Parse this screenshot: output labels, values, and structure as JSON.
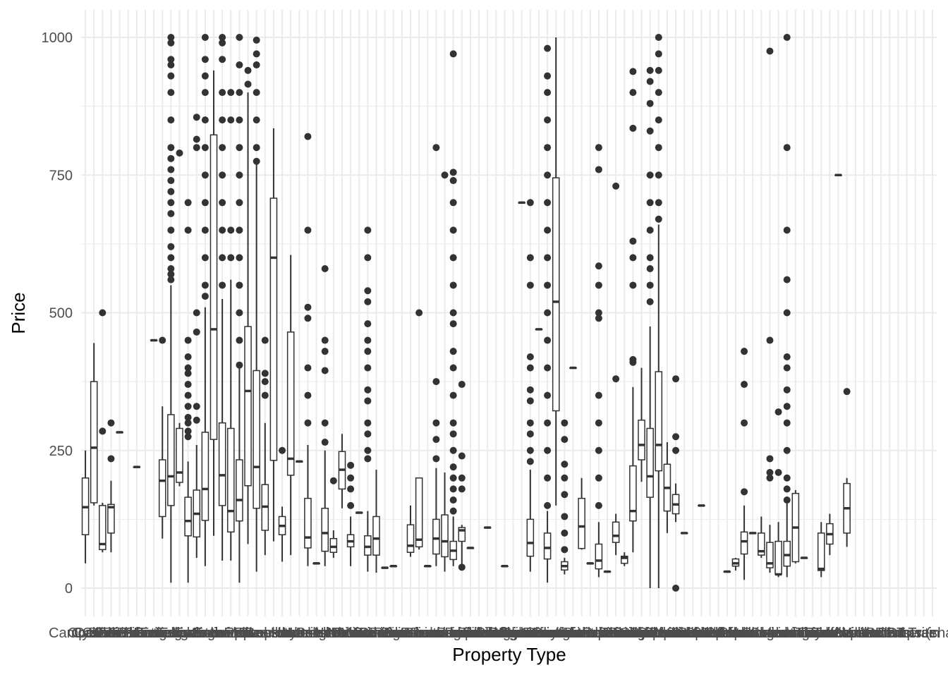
{
  "chart_data": {
    "type": "boxplot",
    "title": "",
    "xlabel": "Property Type",
    "ylabel": "Price",
    "ylim": [
      -50,
      1050
    ],
    "yticks": [
      0,
      250,
      500,
      750,
      1000
    ],
    "grid": true,
    "legend": "none",
    "colors": {
      "box_stroke": "#333333",
      "box_fill": "#ffffff",
      "grid": "#ebebeb",
      "point": "#333333"
    },
    "categories": [
      "Camper/RV",
      "Castle",
      "Chalet",
      "Condominium",
      "Cycladic house",
      "Dome house",
      "Earth house",
      "Entire bungalow",
      "Entire cabin",
      "Entire chalet",
      "Entire condominium",
      "Entire cottage",
      "Entire guest suite",
      "Entire guesthouse",
      "Entire home/apt",
      "Entire house",
      "Entire loft",
      "Entire place",
      "Entire serviced apartment",
      "Entire townhouse",
      "Entire villa",
      "Farm stay",
      "Guest suite",
      "Guesthouse",
      "Hostel",
      "Hotel",
      "House",
      "Houseboat",
      "Hut",
      "Island",
      "Lighthouse",
      "Loft",
      "Minsu",
      "Nature lodge",
      "Other",
      "Pension",
      "Private room",
      "Private room in bed and breakfast",
      "Private room in bungalow",
      "Private room in cabin",
      "Private room in casa particular",
      "Private room in chalet",
      "Private room in condominium",
      "Private room in cottage",
      "Private room in dome house",
      "Private room in earth house",
      "Private room in farm stay",
      "Private room in guest suite",
      "Private room in guesthouse",
      "Private room in hostel",
      "Private room in house",
      "Private room in hut",
      "Private room in island",
      "Private room in lighthouse",
      "Private room in loft",
      "Private room in minsu",
      "Private room in nature lodge",
      "Private room in pension",
      "Private room in rental unit",
      "Private room in resort",
      "Private room in serviced apartment",
      "Private room in tiny house",
      "Private room in townhouse",
      "Private room in villa",
      "Ranch",
      "Rental unit",
      "Resort",
      "Room in aparthotel",
      "Room in bed and breakfast",
      "Room in boutique hotel",
      "Room in hostel",
      "Room in hotel",
      "Room in serviced apartment",
      "Serviced apartment",
      "Shared room",
      "Shared room in bed and breakfast",
      "Shared room in condominium",
      "Shared room in cottage",
      "Shared room in guesthouse",
      "Shared room in hostel",
      "Shared room in house",
      "Shared room in loft",
      "Shared room in rental unit",
      "Shared room in serviced apartment",
      "Shared room in tent",
      "Shared room in villa",
      "Tent",
      "Tiny house",
      "Townhouse",
      "Treehouse",
      "Villa",
      "Windmill",
      "Yurt",
      "Barn",
      "Boat",
      "Bus",
      "Campsite",
      "Tower",
      "Train",
      "Other (shared)"
    ],
    "boxes": [
      {
        "i": 0,
        "min": 45,
        "q1": 97,
        "med": 147,
        "q3": 200,
        "max": 250,
        "out": []
      },
      {
        "i": 1,
        "min": 150,
        "q1": 155,
        "med": 255,
        "q3": 375,
        "max": 445,
        "out": []
      },
      {
        "i": 2,
        "min": 65,
        "q1": 70,
        "med": 80,
        "q3": 150,
        "max": 155,
        "out": [
          285,
          500
        ]
      },
      {
        "i": 3,
        "min": 65,
        "q1": 100,
        "med": 147,
        "q3": 152,
        "max": 195,
        "out": [
          235,
          300
        ]
      },
      {
        "i": 4,
        "min": 283,
        "q1": 283,
        "med": 283,
        "q3": 283,
        "max": 283,
        "out": []
      },
      {
        "i": 6,
        "min": 220,
        "q1": 220,
        "med": 220,
        "q3": 220,
        "max": 220,
        "out": []
      },
      {
        "i": 8,
        "min": 450,
        "q1": 450,
        "med": 450,
        "q3": 450,
        "max": 450,
        "out": []
      },
      {
        "i": 9,
        "min": 90,
        "q1": 130,
        "med": 195,
        "q3": 233,
        "max": 330,
        "out": [
          450
        ]
      },
      {
        "i": 10,
        "min": 10,
        "q1": 150,
        "med": 203,
        "q3": 315,
        "max": 550,
        "out": [
          560,
          570,
          580,
          600,
          620,
          650,
          680,
          700,
          720,
          740,
          760,
          780,
          800,
          850,
          900,
          930,
          950,
          960,
          990,
          1000
        ]
      },
      {
        "i": 11,
        "min": 185,
        "q1": 192,
        "med": 210,
        "q3": 290,
        "max": 300,
        "out": [
          790
        ]
      },
      {
        "i": 12,
        "min": 10,
        "q1": 95,
        "med": 122,
        "q3": 165,
        "max": 230,
        "out": [
          275,
          285,
          300,
          310,
          330,
          350,
          370,
          390,
          400,
          420,
          450,
          650,
          700
        ]
      },
      {
        "i": 13,
        "min": 55,
        "q1": 93,
        "med": 135,
        "q3": 178,
        "max": 260,
        "out": [
          305,
          330,
          465,
          500,
          800,
          815,
          855
        ]
      },
      {
        "i": 14,
        "min": 40,
        "q1": 123,
        "med": 180,
        "q3": 283,
        "max": 510,
        "out": [
          530,
          550,
          600,
          650,
          700,
          750,
          800,
          850,
          900,
          930,
          960,
          1000
        ]
      },
      {
        "i": 15,
        "min": 95,
        "q1": 270,
        "med": 470,
        "q3": 823,
        "max": 940,
        "out": []
      },
      {
        "i": 16,
        "min": 50,
        "q1": 150,
        "med": 205,
        "q3": 300,
        "max": 525,
        "out": [
          550,
          600,
          650,
          700,
          750,
          800,
          850,
          900,
          960,
          990,
          1000
        ]
      },
      {
        "i": 17,
        "min": 50,
        "q1": 102,
        "med": 140,
        "q3": 290,
        "max": 560,
        "out": [
          600,
          650,
          850,
          900
        ]
      },
      {
        "i": 18,
        "min": 10,
        "q1": 122,
        "med": 160,
        "q3": 233,
        "max": 400,
        "out": [
          405,
          450,
          500,
          550,
          600,
          650,
          700,
          750,
          800,
          850,
          900,
          950,
          1000
        ]
      },
      {
        "i": 19,
        "min": 80,
        "q1": 186,
        "med": 358,
        "q3": 475,
        "max": 900,
        "out": [
          915,
          940
        ]
      },
      {
        "i": 20,
        "min": 30,
        "q1": 145,
        "med": 220,
        "q3": 395,
        "max": 770,
        "out": [
          775,
          800,
          850,
          900,
          950,
          970,
          995
        ]
      },
      {
        "i": 21,
        "min": 60,
        "q1": 105,
        "med": 148,
        "q3": 188,
        "max": 300,
        "out": [
          350,
          375,
          390,
          450
        ]
      },
      {
        "i": 22,
        "min": 85,
        "q1": 232,
        "med": 600,
        "q3": 708,
        "max": 835,
        "out": []
      },
      {
        "i": 23,
        "min": 48,
        "q1": 97,
        "med": 113,
        "q3": 130,
        "max": 148,
        "out": [
          250
        ]
      },
      {
        "i": 24,
        "min": 60,
        "q1": 205,
        "med": 235,
        "q3": 465,
        "max": 605,
        "out": []
      },
      {
        "i": 25,
        "min": 230,
        "q1": 230,
        "med": 230,
        "q3": 230,
        "max": 230,
        "out": []
      },
      {
        "i": 26,
        "min": 40,
        "q1": 73,
        "med": 92,
        "q3": 163,
        "max": 260,
        "out": [
          300,
          350,
          400,
          490,
          510,
          650,
          820
        ]
      },
      {
        "i": 27,
        "min": 45,
        "q1": 45,
        "med": 45,
        "q3": 45,
        "max": 45,
        "out": []
      },
      {
        "i": 28,
        "min": 40,
        "q1": 67,
        "med": 100,
        "q3": 145,
        "max": 250,
        "out": [
          265,
          300,
          395,
          430,
          450,
          580
        ]
      },
      {
        "i": 29,
        "min": 55,
        "q1": 65,
        "med": 75,
        "q3": 90,
        "max": 105,
        "out": [
          195
        ]
      },
      {
        "i": 30,
        "min": 145,
        "q1": 180,
        "med": 215,
        "q3": 248,
        "max": 280,
        "out": []
      },
      {
        "i": 31,
        "min": 40,
        "q1": 75,
        "med": 85,
        "q3": 97,
        "max": 130,
        "out": [
          150,
          180,
          200,
          223
        ]
      },
      {
        "i": 32,
        "min": 137,
        "q1": 137,
        "med": 137,
        "q3": 137,
        "max": 137,
        "out": []
      },
      {
        "i": 33,
        "min": 30,
        "q1": 60,
        "med": 75,
        "q3": 95,
        "max": 140,
        "out": [
          235,
          250,
          280,
          300,
          340,
          360,
          400,
          430,
          450,
          480,
          520,
          540,
          600,
          650
        ]
      },
      {
        "i": 34,
        "min": 28,
        "q1": 60,
        "med": 90,
        "q3": 130,
        "max": 215,
        "out": []
      },
      {
        "i": 35,
        "min": 37,
        "q1": 37,
        "med": 37,
        "q3": 37,
        "max": 37,
        "out": []
      },
      {
        "i": 36,
        "min": 40,
        "q1": 40,
        "med": 40,
        "q3": 40,
        "max": 40,
        "out": []
      },
      {
        "i": 38,
        "min": 57,
        "q1": 65,
        "med": 77,
        "q3": 115,
        "max": 150,
        "out": []
      },
      {
        "i": 39,
        "min": 70,
        "q1": 75,
        "med": 88,
        "q3": 200,
        "max": 200,
        "out": [
          500
        ]
      },
      {
        "i": 40,
        "min": 40,
        "q1": 40,
        "med": 40,
        "q3": 40,
        "max": 40,
        "out": []
      },
      {
        "i": 41,
        "min": 40,
        "q1": 62,
        "med": 90,
        "q3": 125,
        "max": 218,
        "out": [
          235,
          270,
          300,
          375,
          800
        ]
      },
      {
        "i": 42,
        "min": 30,
        "q1": 57,
        "med": 85,
        "q3": 133,
        "max": 210,
        "out": [
          750
        ]
      },
      {
        "i": 43,
        "min": 40,
        "q1": 52,
        "med": 68,
        "q3": 85,
        "max": 130,
        "out": [
          140,
          160,
          180,
          200,
          220,
          250,
          280,
          300,
          350,
          400,
          430,
          480,
          500,
          550,
          600,
          650,
          700,
          740,
          755,
          970
        ]
      },
      {
        "i": 44,
        "min": 36,
        "q1": 85,
        "med": 105,
        "q3": 110,
        "max": 115,
        "out": [
          180,
          200,
          240,
          370,
          38
        ]
      },
      {
        "i": 45,
        "min": 73,
        "q1": 73,
        "med": 73,
        "q3": 73,
        "max": 73,
        "out": []
      },
      {
        "i": 47,
        "min": 110,
        "q1": 110,
        "med": 110,
        "q3": 110,
        "max": 110,
        "out": []
      },
      {
        "i": 49,
        "min": 40,
        "q1": 40,
        "med": 40,
        "q3": 40,
        "max": 40,
        "out": []
      },
      {
        "i": 51,
        "min": 700,
        "q1": 700,
        "med": 700,
        "q3": 700,
        "max": 700,
        "out": []
      },
      {
        "i": 52,
        "min": 30,
        "q1": 58,
        "med": 82,
        "q3": 125,
        "max": 215,
        "out": [
          230,
          250,
          280,
          300,
          340,
          360,
          400,
          420,
          550,
          600,
          700
        ]
      },
      {
        "i": 53,
        "min": 470,
        "q1": 470,
        "med": 470,
        "q3": 470,
        "max": 470,
        "out": []
      },
      {
        "i": 54,
        "min": 10,
        "q1": 53,
        "med": 73,
        "q3": 100,
        "max": 140,
        "out": [
          150,
          200,
          250,
          300,
          350,
          400,
          450,
          500,
          550,
          600,
          650,
          700,
          750,
          800,
          850,
          900,
          930,
          980
        ]
      },
      {
        "i": 55,
        "min": 150,
        "q1": 322,
        "med": 520,
        "q3": 745,
        "max": 1000,
        "out": []
      },
      {
        "i": 56,
        "min": 25,
        "q1": 33,
        "med": 40,
        "q3": 48,
        "max": 55,
        "out": [
          70,
          100,
          130,
          170,
          200,
          225,
          270,
          300
        ]
      },
      {
        "i": 57,
        "min": 400,
        "q1": 400,
        "med": 400,
        "q3": 400,
        "max": 400,
        "out": []
      },
      {
        "i": 58,
        "min": 70,
        "q1": 72,
        "med": 112,
        "q3": 163,
        "max": 200,
        "out": []
      },
      {
        "i": 59,
        "min": 45,
        "q1": 45,
        "med": 45,
        "q3": 45,
        "max": 45,
        "out": []
      },
      {
        "i": 60,
        "min": 20,
        "q1": 35,
        "med": 50,
        "q3": 80,
        "max": 120,
        "out": [
          150,
          200,
          250,
          300,
          350,
          490,
          500,
          550,
          585,
          760,
          800
        ]
      },
      {
        "i": 61,
        "min": 30,
        "q1": 30,
        "med": 30,
        "q3": 30,
        "max": 30,
        "out": []
      },
      {
        "i": 62,
        "min": 60,
        "q1": 83,
        "med": 95,
        "q3": 120,
        "max": 135,
        "out": [
          380,
          730
        ]
      },
      {
        "i": 63,
        "min": 40,
        "q1": 45,
        "med": 55,
        "q3": 58,
        "max": 65,
        "out": []
      },
      {
        "i": 64,
        "min": 65,
        "q1": 122,
        "med": 140,
        "q3": 222,
        "max": 365,
        "out": [
          410,
          415,
          550,
          600,
          630,
          835,
          900,
          938
        ]
      },
      {
        "i": 65,
        "min": 193,
        "q1": 233,
        "med": 260,
        "q3": 305,
        "max": 400,
        "out": []
      },
      {
        "i": 66,
        "min": 0,
        "q1": 165,
        "med": 203,
        "q3": 290,
        "max": 475,
        "out": [
          520,
          550,
          580,
          600,
          650,
          700,
          750,
          830,
          880,
          920,
          940
        ]
      },
      {
        "i": 67,
        "min": 0,
        "q1": 213,
        "med": 260,
        "q3": 393,
        "max": 660,
        "out": [
          670,
          700,
          750,
          800,
          850,
          900,
          940,
          970,
          1000
        ]
      },
      {
        "i": 68,
        "min": 100,
        "q1": 140,
        "med": 182,
        "q3": 225,
        "max": 265,
        "out": []
      },
      {
        "i": 69,
        "min": 120,
        "q1": 135,
        "med": 152,
        "q3": 170,
        "max": 190,
        "out": [
          0,
          250,
          275,
          380
        ]
      },
      {
        "i": 70,
        "min": 100,
        "q1": 100,
        "med": 100,
        "q3": 100,
        "max": 100,
        "out": []
      },
      {
        "i": 72,
        "min": 150,
        "q1": 150,
        "med": 150,
        "q3": 150,
        "max": 150,
        "out": []
      },
      {
        "i": 75,
        "min": 30,
        "q1": 30,
        "med": 30,
        "q3": 30,
        "max": 30,
        "out": []
      },
      {
        "i": 76,
        "min": 32,
        "q1": 40,
        "med": 45,
        "q3": 53,
        "max": 55,
        "out": []
      },
      {
        "i": 77,
        "min": 15,
        "q1": 62,
        "med": 85,
        "q3": 102,
        "max": 150,
        "out": [
          175,
          300,
          370,
          430
        ]
      },
      {
        "i": 78,
        "min": 100,
        "q1": 100,
        "med": 100,
        "q3": 100,
        "max": 100,
        "out": []
      },
      {
        "i": 79,
        "min": 55,
        "q1": 60,
        "med": 67,
        "q3": 100,
        "max": 130,
        "out": []
      },
      {
        "i": 80,
        "min": 28,
        "q1": 37,
        "med": 45,
        "q3": 83,
        "max": 115,
        "out": [
          200,
          210,
          235,
          450,
          975
        ]
      },
      {
        "i": 81,
        "min": 20,
        "q1": 25,
        "med": 25,
        "q3": 85,
        "max": 120,
        "out": [
          210,
          320
        ]
      },
      {
        "i": 82,
        "min": 20,
        "q1": 40,
        "med": 60,
        "q3": 85,
        "max": 155,
        "out": [
          160,
          180,
          200,
          250,
          300,
          330,
          360,
          400,
          420,
          500,
          560,
          650,
          800,
          1000
        ]
      },
      {
        "i": 83,
        "min": 45,
        "q1": 48,
        "med": 110,
        "q3": 172,
        "max": 178,
        "out": []
      },
      {
        "i": 84,
        "min": 55,
        "q1": 55,
        "med": 55,
        "q3": 55,
        "max": 55,
        "out": []
      },
      {
        "i": 86,
        "min": 20,
        "q1": 32,
        "med": 35,
        "q3": 100,
        "max": 120,
        "out": []
      },
      {
        "i": 87,
        "min": 60,
        "q1": 80,
        "med": 98,
        "q3": 117,
        "max": 135,
        "out": []
      },
      {
        "i": 88,
        "min": 750,
        "q1": 750,
        "med": 750,
        "q3": 750,
        "max": 750,
        "out": []
      },
      {
        "i": 89,
        "min": 75,
        "q1": 100,
        "med": 145,
        "q3": 190,
        "max": 200,
        "out": [
          357
        ]
      }
    ]
  }
}
